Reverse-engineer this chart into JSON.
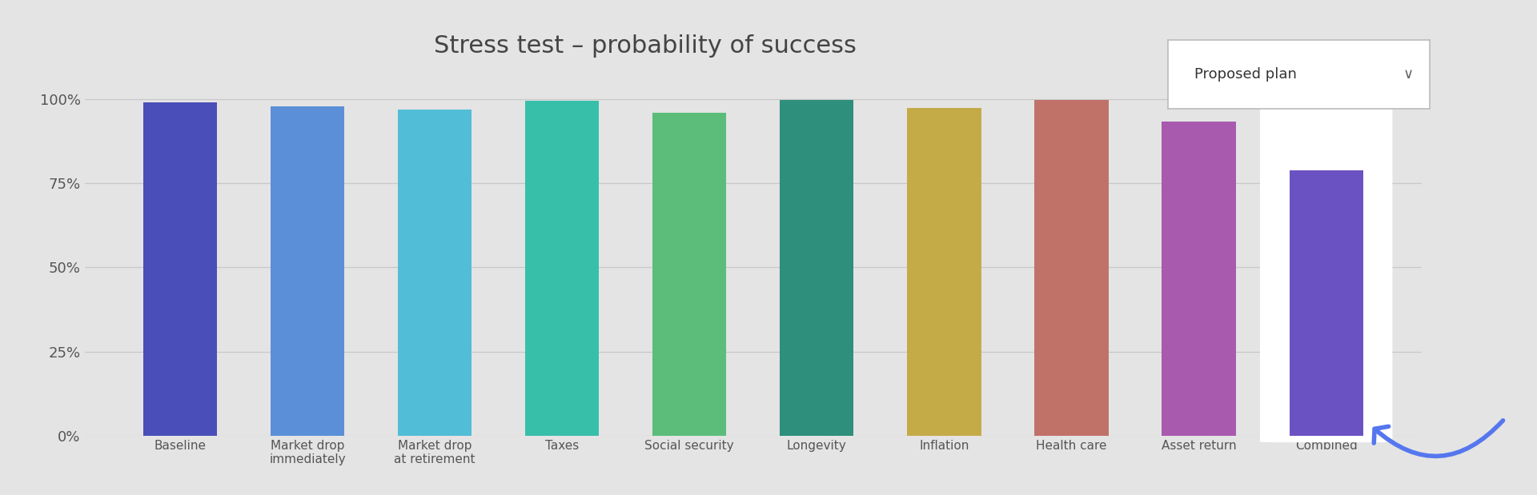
{
  "title": "Stress test – probability of success",
  "background_color": "#e4e4e4",
  "plot_bg_color": "#e4e4e4",
  "categories": [
    "Baseline",
    "Market drop\nimmediately",
    "Market drop\nat retirement",
    "Taxes",
    "Social security",
    "Longevity",
    "Inflation",
    "Health care",
    "Asset return",
    "Combined"
  ],
  "values": [
    99.0,
    98.0,
    97.0,
    99.5,
    96.0,
    99.8,
    97.5,
    99.8,
    93.5,
    79.0
  ],
  "bar_colors": [
    "#4a4eb8",
    "#5b8fd8",
    "#52bdd6",
    "#38bfaa",
    "#5cbd7a",
    "#2d8f7c",
    "#c5aa48",
    "#c07268",
    "#a85aae",
    "#6b52c2"
  ],
  "ylim": [
    0,
    106
  ],
  "yticks": [
    0,
    25,
    50,
    75,
    100
  ],
  "ytick_labels": [
    "0%",
    "25%",
    "50%",
    "75%",
    "100%"
  ],
  "grid_color": "#c8c8c8",
  "tick_color": "#555555",
  "title_fontsize": 22,
  "tick_fontsize": 13,
  "xtick_fontsize": 11,
  "bar_width": 0.58,
  "combined_highlight_color": "#ffffff",
  "dropdown_text": "Proposed plan",
  "dropdown_box_color": "#ffffff",
  "arrow_color": "#5577ee"
}
